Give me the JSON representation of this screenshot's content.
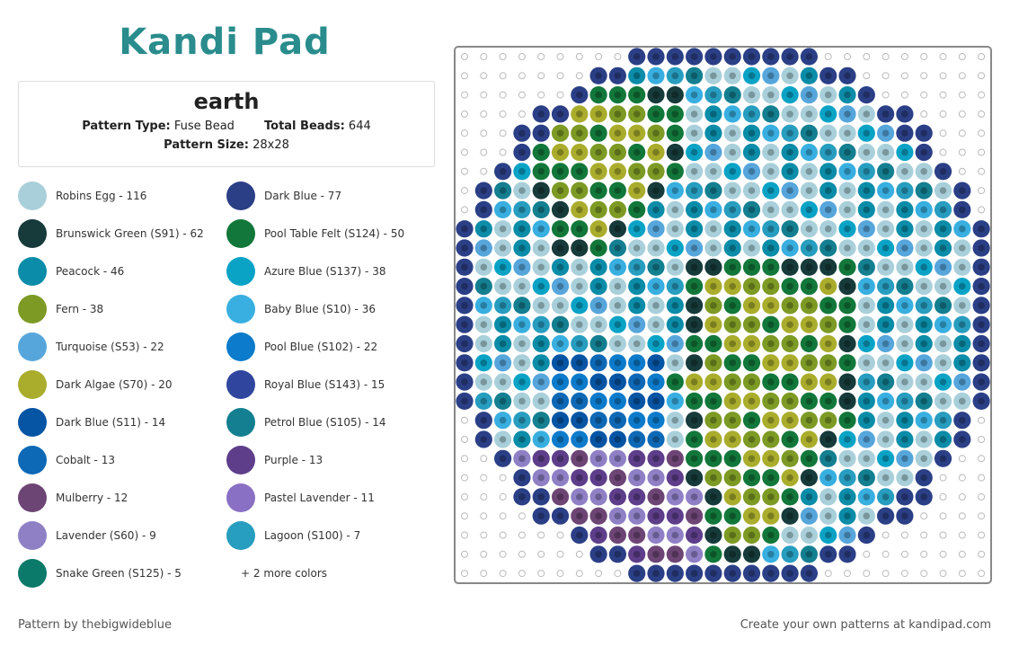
{
  "logo": "Kandi Pad",
  "header": {
    "title": "earth",
    "pattern_type_label": "Pattern Type:",
    "pattern_type": "Fuse Bead",
    "total_beads_label": "Total Beads:",
    "total_beads": "644",
    "pattern_size_label": "Pattern Size:",
    "pattern_size": "28x28"
  },
  "colors": [
    {
      "label": "Robins Egg - 116",
      "color": "#a9d0da"
    },
    {
      "label": "Dark Blue - 77",
      "color": "#2b3f86"
    },
    {
      "label": "Brunswick Green (S91) - 62",
      "color": "#173a3a"
    },
    {
      "label": "Pool Table Felt (S124) - 50",
      "color": "#12773a"
    },
    {
      "label": "Peacock - 46",
      "color": "#0b8ca8"
    },
    {
      "label": "Azure Blue (S137) - 38",
      "color": "#0aa3c6"
    },
    {
      "label": "Fern - 38",
      "color": "#7d9a24"
    },
    {
      "label": "Baby Blue (S10) - 36",
      "color": "#38afe0"
    },
    {
      "label": "Turquoise (S53) - 22",
      "color": "#56a6dc"
    },
    {
      "label": "Pool Blue (S102) - 22",
      "color": "#0c7bcb"
    },
    {
      "label": "Dark Algae (S70) - 20",
      "color": "#aaad2c"
    },
    {
      "label": "Royal Blue (S143) - 15",
      "color": "#30469e"
    },
    {
      "label": "Dark Blue (S11) - 14",
      "color": "#0654a4"
    },
    {
      "label": "Petrol Blue (S105) - 14",
      "color": "#137f90"
    },
    {
      "label": "Cobalt - 13",
      "color": "#0d68b6"
    },
    {
      "label": "Purple - 13",
      "color": "#5e3e8a"
    },
    {
      "label": "Mulberry - 12",
      "color": "#6d4575"
    },
    {
      "label": "Pastel Lavender - 11",
      "color": "#8a70c4"
    },
    {
      "label": "Lavender (S60) - 9",
      "color": "#8f80c6"
    },
    {
      "label": "Lagoon (S100) - 7",
      "color": "#279dbf"
    },
    {
      "label": "Snake Green (S125) - 5",
      "color": "#0b7a6a"
    }
  ],
  "more_colors": "+ 2 more colors",
  "footer": {
    "credit": "Pattern by thebigwideblue",
    "promo": "Create your own patterns at kandipad.com"
  }
}
